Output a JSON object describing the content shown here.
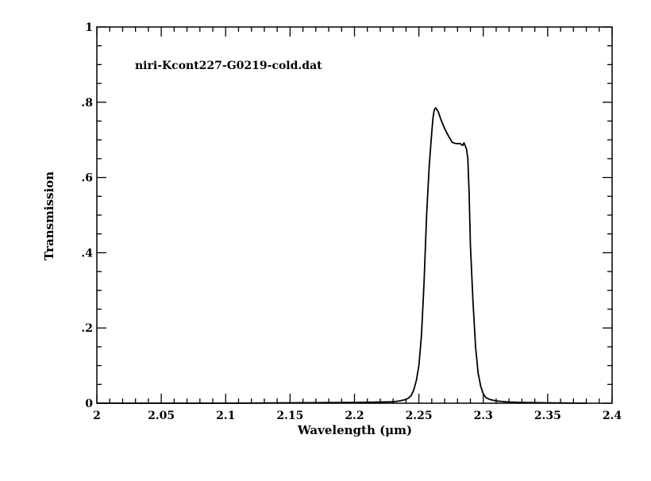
{
  "chart_data": {
    "type": "line",
    "title": "",
    "annotation": "niri-Kcont227-G0219-cold.dat",
    "xlabel": "Wavelength (μm)",
    "ylabel": "Transmission",
    "xlim": [
      2.0,
      2.4
    ],
    "ylim": [
      0,
      1
    ],
    "xticks": [
      2.0,
      2.05,
      2.1,
      2.15,
      2.2,
      2.25,
      2.3,
      2.35,
      2.4
    ],
    "xtick_labels": [
      "2",
      "2.05",
      "2.1",
      "2.15",
      "2.2",
      "2.25",
      "2.3",
      "2.35",
      "2.4"
    ],
    "yticks": [
      0,
      0.2,
      0.4,
      0.6,
      0.8,
      1.0
    ],
    "ytick_labels": [
      "0",
      ".2",
      ".4",
      ".6",
      ".8",
      "1"
    ],
    "x_minor_step": 0.01,
    "y_minor_step": 0.05,
    "grid": false,
    "series": [
      {
        "x": [
          2.0,
          2.1,
          2.15,
          2.2,
          2.22,
          2.23,
          2.235,
          2.24,
          2.242,
          2.244,
          2.246,
          2.248,
          2.25,
          2.252,
          2.254,
          2.256,
          2.258,
          2.26,
          2.261,
          2.262,
          2.263,
          2.265,
          2.267,
          2.27,
          2.273,
          2.276,
          2.279,
          2.282,
          2.283,
          2.284,
          2.285,
          2.286,
          2.287,
          2.288,
          2.289,
          2.29,
          2.292,
          2.294,
          2.296,
          2.298,
          2.3,
          2.302,
          2.305,
          2.31,
          2.32,
          2.33,
          2.35,
          2.38
        ],
        "y": [
          0.0,
          0.0,
          0.001,
          0.002,
          0.003,
          0.004,
          0.006,
          0.01,
          0.014,
          0.02,
          0.035,
          0.06,
          0.1,
          0.18,
          0.32,
          0.5,
          0.63,
          0.72,
          0.76,
          0.78,
          0.785,
          0.775,
          0.755,
          0.73,
          0.71,
          0.693,
          0.69,
          0.69,
          0.688,
          0.685,
          0.692,
          0.684,
          0.675,
          0.65,
          0.56,
          0.42,
          0.27,
          0.15,
          0.08,
          0.045,
          0.025,
          0.015,
          0.01,
          0.006,
          0.003,
          0.002,
          0.001,
          0.0
        ]
      }
    ]
  }
}
